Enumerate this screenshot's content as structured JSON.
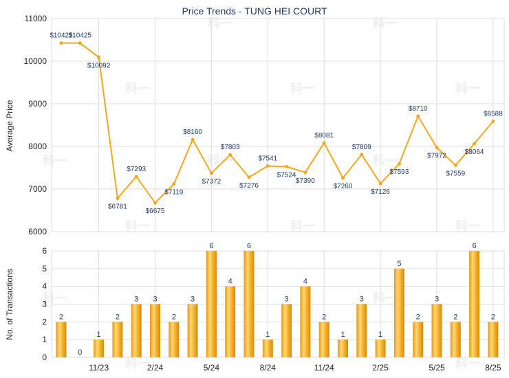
{
  "chart_data": [
    {
      "type": "line",
      "title": "Price Trends - TUNG HEI COURT",
      "ylabel": "Average Price",
      "ylim": [
        6000,
        11000
      ],
      "yticks": [
        6000,
        7000,
        8000,
        9000,
        10000,
        11000
      ],
      "color": "#f5a81c",
      "grid": true,
      "points": [
        {
          "i": 0,
          "value": 10425,
          "label": "$10425"
        },
        {
          "i": 1,
          "value": 10425,
          "label": "$10425"
        },
        {
          "i": 2,
          "value": 10092,
          "label": "$10092"
        },
        {
          "i": 3,
          "value": 6781,
          "label": "$6781"
        },
        {
          "i": 4,
          "value": 7293,
          "label": "$7293"
        },
        {
          "i": 5,
          "value": 6675,
          "label": "$6675"
        },
        {
          "i": 6,
          "value": 7119,
          "label": "$7119"
        },
        {
          "i": 7,
          "value": 8160,
          "label": "$8160"
        },
        {
          "i": 8,
          "value": 7372,
          "label": "$7372"
        },
        {
          "i": 9,
          "value": 7803,
          "label": "$7803"
        },
        {
          "i": 10,
          "value": 7276,
          "label": "$7276"
        },
        {
          "i": 11,
          "value": 7541,
          "label": "$7541"
        },
        {
          "i": 12,
          "value": 7524,
          "label": "$7524"
        },
        {
          "i": 13,
          "value": 7390,
          "label": "$7390"
        },
        {
          "i": 14,
          "value": 8081,
          "label": "$8081"
        },
        {
          "i": 15,
          "value": 7260,
          "label": "$7260"
        },
        {
          "i": 16,
          "value": 7809,
          "label": "$7809"
        },
        {
          "i": 17,
          "value": 7126,
          "label": "$7126"
        },
        {
          "i": 18,
          "value": 7593,
          "label": "$7593"
        },
        {
          "i": 19,
          "value": 8710,
          "label": "$8710"
        },
        {
          "i": 20,
          "value": 7972,
          "label": "$7972"
        },
        {
          "i": 21,
          "value": 7559,
          "label": "$7559"
        },
        {
          "i": 22,
          "value": 8064,
          "label": "$8064"
        },
        {
          "i": 23,
          "value": 8588,
          "label": "$8588"
        }
      ]
    },
    {
      "type": "bar",
      "ylabel": "No. of Transactions",
      "ylim": [
        0,
        6
      ],
      "yticks": [
        0,
        1,
        2,
        3,
        4,
        5,
        6
      ],
      "color": "#f5a81c",
      "grid": true,
      "values": [
        2,
        0,
        1,
        2,
        3,
        3,
        2,
        3,
        6,
        4,
        6,
        1,
        3,
        4,
        2,
        1,
        3,
        1,
        5,
        2,
        3,
        2,
        6,
        2
      ],
      "xticks": [
        {
          "i": 2,
          "label": "11/23"
        },
        {
          "i": 5,
          "label": "2/24"
        },
        {
          "i": 8,
          "label": "5/24"
        },
        {
          "i": 11,
          "label": "8/24"
        },
        {
          "i": 14,
          "label": "11/24"
        },
        {
          "i": 17,
          "label": "2/25"
        },
        {
          "i": 20,
          "label": "5/25"
        },
        {
          "i": 23,
          "label": "8/25"
        }
      ]
    }
  ],
  "watermark": "科一"
}
